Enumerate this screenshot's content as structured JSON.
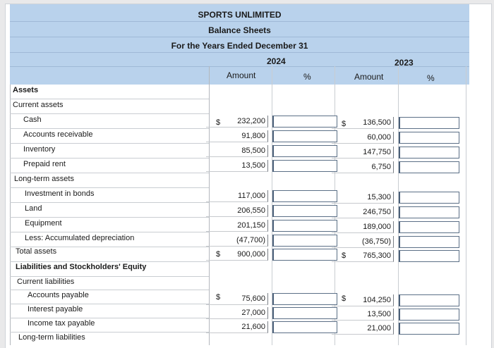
{
  "header": {
    "company": "SPORTS UNLIMITED",
    "statement": "Balance Sheets",
    "period": "For the Years Ended December 31",
    "year_1": "2024",
    "year_2": "2023",
    "col_amount": "Amount",
    "col_percent": "%"
  },
  "rows": {
    "assets": "Assets",
    "current_assets": "Current assets",
    "cash": "Cash",
    "ar": "Accounts receivable",
    "inventory": "Inventory",
    "prepaid": "Prepaid rent",
    "lt_assets": "Long-term assets",
    "investment": "Investment in bonds",
    "land": "Land",
    "equipment": "Equipment",
    "acc_dep": "Less: Accumulated depreciation",
    "total_assets": "Total assets",
    "liab_equity": "Liabilities and Stockholders' Equity",
    "current_liab": "Current liabilities",
    "ap": "Accounts payable",
    "interest": "Interest payable",
    "income_tax": "Income tax payable",
    "lt_liab": "Long-term liabilities"
  },
  "dollar_sign": "$",
  "values_2024": {
    "cash": "232,200",
    "ar": "91,800",
    "inventory": "85,500",
    "prepaid": "13,500",
    "investment": "117,000",
    "land": "206,550",
    "equipment": "201,150",
    "acc_dep": "(47,700)",
    "total_assets": "900,000",
    "ap": "75,600",
    "interest": "27,000",
    "income_tax": "21,600"
  },
  "values_2023": {
    "cash": "136,500",
    "ar": "60,000",
    "inventory": "147,750",
    "prepaid": "6,750",
    "investment": "15,300",
    "land": "246,750",
    "equipment": "189,000",
    "acc_dep": "(36,750)",
    "total_assets": "765,300",
    "ap": "104,250",
    "interest": "13,500",
    "income_tax": "21,000"
  }
}
